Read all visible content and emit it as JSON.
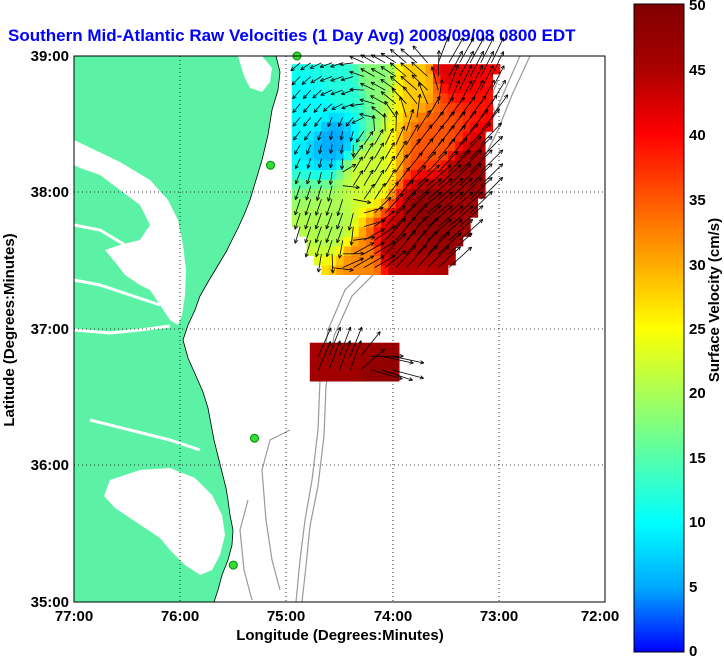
{
  "title": "Southern Mid-Atlantic Raw Velocities (1 Day Avg) 2008/09/08 0800 EDT",
  "x_label": "Longitude (Degrees:Minutes)",
  "y_label": "Latitude (Degrees:Minutes)",
  "x_ticks": [
    "77:00",
    "76:00",
    "75:00",
    "74:00",
    "73:00",
    "72:00"
  ],
  "y_ticks": [
    "39:00",
    "38:00",
    "37:00",
    "36:00",
    "35:00"
  ],
  "colorbar": {
    "label": "Surface Velocity (cm/s)",
    "ticks": [
      "50",
      "45",
      "40",
      "35",
      "30",
      "25",
      "20",
      "15",
      "10",
      "5",
      "0"
    ],
    "min": 0,
    "max": 50,
    "colormap": [
      "#0000ff",
      "#00aaff",
      "#00ffff",
      "#55ffaa",
      "#aaff55",
      "#ffff00",
      "#ffaa00",
      "#ff5500",
      "#ff0000",
      "#aa0000",
      "#800000"
    ]
  },
  "colors": {
    "land": "#5cf2a6",
    "water": "#ffffff",
    "bathymetry": "#9a9a9a",
    "title": "#0000ff",
    "stations": "#33dd33"
  },
  "chart_data": {
    "type": "map",
    "lon_range": [
      -77,
      -72
    ],
    "lat_range": [
      35,
      39
    ],
    "grid": true,
    "stations": [
      {
        "lon": -74.9,
        "lat": 39.0
      },
      {
        "lon": -75.15,
        "lat": 38.2
      },
      {
        "lon": -75.3,
        "lat": 36.2
      },
      {
        "lon": -75.5,
        "lat": 35.27
      }
    ],
    "velocity_cells": [
      {
        "lon": -74.6,
        "lat": 38.35,
        "speed": 5,
        "dir": 190
      },
      {
        "lon": -74.8,
        "lat": 38.55,
        "speed": 10,
        "dir": 220
      },
      {
        "lon": -74.5,
        "lat": 38.75,
        "speed": 12,
        "dir": 250
      },
      {
        "lon": -74.2,
        "lat": 38.85,
        "speed": 18,
        "dir": 300
      },
      {
        "lon": -73.8,
        "lat": 38.8,
        "speed": 28,
        "dir": 310
      },
      {
        "lon": -73.5,
        "lat": 38.9,
        "speed": 42,
        "dir": 30
      },
      {
        "lon": -73.6,
        "lat": 38.35,
        "speed": 35,
        "dir": 40
      },
      {
        "lon": -73.35,
        "lat": 38.1,
        "speed": 46,
        "dir": 45
      },
      {
        "lon": -73.7,
        "lat": 37.8,
        "speed": 48,
        "dir": 50
      },
      {
        "lon": -74.0,
        "lat": 37.55,
        "speed": 45,
        "dir": 40
      },
      {
        "lon": -74.3,
        "lat": 37.45,
        "speed": 32,
        "dir": 60
      },
      {
        "lon": -74.6,
        "lat": 37.75,
        "speed": 20,
        "dir": 200
      },
      {
        "lon": -74.3,
        "lat": 38.1,
        "speed": 22,
        "dir": 30
      },
      {
        "lon": -74.5,
        "lat": 36.65,
        "speed": 46,
        "dir": 20
      },
      {
        "lon": -74.2,
        "lat": 36.55,
        "speed": 48,
        "dir": 110
      },
      {
        "lon": -73.9,
        "lat": 36.5,
        "speed": 47,
        "dir": 100
      }
    ]
  }
}
